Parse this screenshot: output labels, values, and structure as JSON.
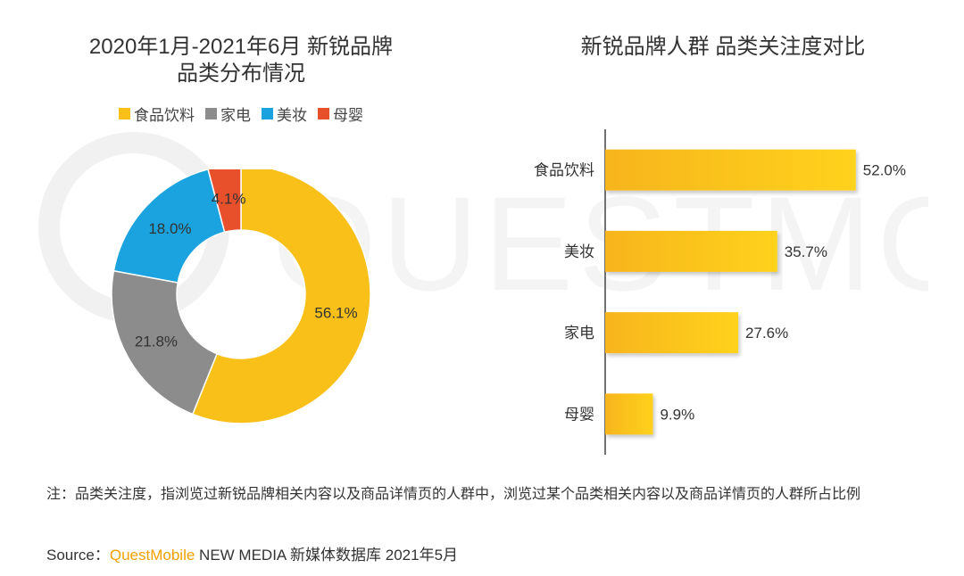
{
  "left_chart": {
    "title_line1": "2020年1月-2021年6月 新锐品牌",
    "title_line2": "品类分布情况"
  },
  "right_chart": {
    "title": "新锐品牌人群 品类关注度对比"
  },
  "watermark_text": "QUESTMOBILE",
  "colors": {
    "food": "#f9c01a",
    "appliance": "#8c8c8c",
    "beauty": "#1aa3de",
    "baby": "#e8502c",
    "bar_start": "#f7b51f",
    "bar_end": "#ffd21a"
  },
  "chart_data": [
    {
      "type": "pie",
      "variant": "donut",
      "legend_position": "top",
      "categories": [
        "食品饮料",
        "家电",
        "美妆",
        "母婴"
      ],
      "values": [
        56.1,
        21.8,
        18.0,
        4.1
      ],
      "labels": [
        "56.1%",
        "21.8%",
        "18.0%",
        "4.1%"
      ]
    },
    {
      "type": "bar",
      "orientation": "horizontal",
      "categories": [
        "食品饮料",
        "美妆",
        "家电",
        "母婴"
      ],
      "values": [
        52.0,
        35.7,
        27.6,
        9.9
      ],
      "labels": [
        "52.0%",
        "35.7%",
        "27.6%",
        "9.9%"
      ],
      "xlim": [
        0,
        60
      ],
      "grid": false
    }
  ],
  "note": "注：品类关注度，指浏览过新锐品牌相关内容以及商品详情页的人群中，浏览过某个品类相关内容以及商品详情页的人群所占比例",
  "source": {
    "prefix": "Source：",
    "brand": "QuestMobile",
    "rest": " NEW MEDIA 新媒体数据库 2021年5月"
  }
}
